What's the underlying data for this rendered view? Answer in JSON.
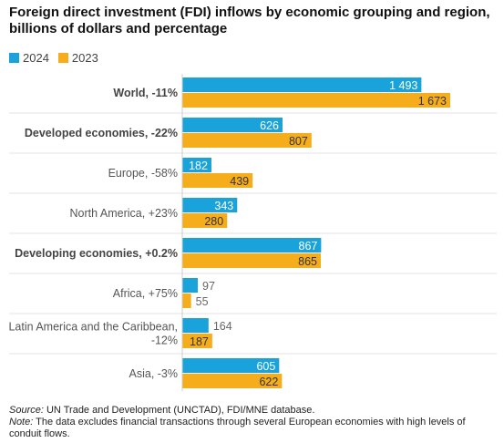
{
  "title": "Foreign direct investment (FDI) inflows by economic grouping and region, billions of dollars and percentage",
  "legend": {
    "series_2024": "2024",
    "series_2023": "2023"
  },
  "colors": {
    "series_2024": "#1aa3db",
    "series_2023": "#f5ad1b"
  },
  "footer": {
    "source_label": "Source:",
    "source_text": " UN Trade and Development (UNCTAD), FDI/MNE database.",
    "note_label": "Note:",
    "note_text": " The data excludes financial transactions through several European economies with high levels of conduit flows."
  },
  "chart_data": {
    "type": "bar",
    "orientation": "horizontal",
    "categories": [
      "World, -11%",
      "Developed economies, -22%",
      "Europe, -58%",
      "North America, +23%",
      "Developing economies, +0.2%",
      "Africa, +75%",
      "Latin America and the Caribbean, -12%",
      "Asia, -3%"
    ],
    "category_lines": [
      [
        "World, -11%"
      ],
      [
        "Developed economies, -22%"
      ],
      [
        "Europe, -58%"
      ],
      [
        "North America, +23%"
      ],
      [
        "Developing economies, +0.2%"
      ],
      [
        "Africa, +75%"
      ],
      [
        "Latin America and the Caribbean,",
        "-12%"
      ],
      [
        "Asia, -3%"
      ]
    ],
    "bold_categories": [
      "World, -11%",
      "Developed economies, -22%",
      "Developing economies, +0.2%"
    ],
    "series": [
      {
        "name": "2024",
        "values": [
          1493,
          626,
          182,
          343,
          867,
          97,
          164,
          605
        ],
        "labels": [
          "1 493",
          "626",
          "182",
          "343",
          "867",
          "97",
          "164",
          "605"
        ]
      },
      {
        "name": "2023",
        "values": [
          1673,
          807,
          439,
          280,
          865,
          55,
          187,
          622
        ],
        "labels": [
          "1 673",
          "807",
          "439",
          "280",
          "865",
          "55",
          "187",
          "622"
        ]
      }
    ],
    "xlim": [
      0,
      1673
    ],
    "legend_position": "top-left",
    "grid": false
  }
}
